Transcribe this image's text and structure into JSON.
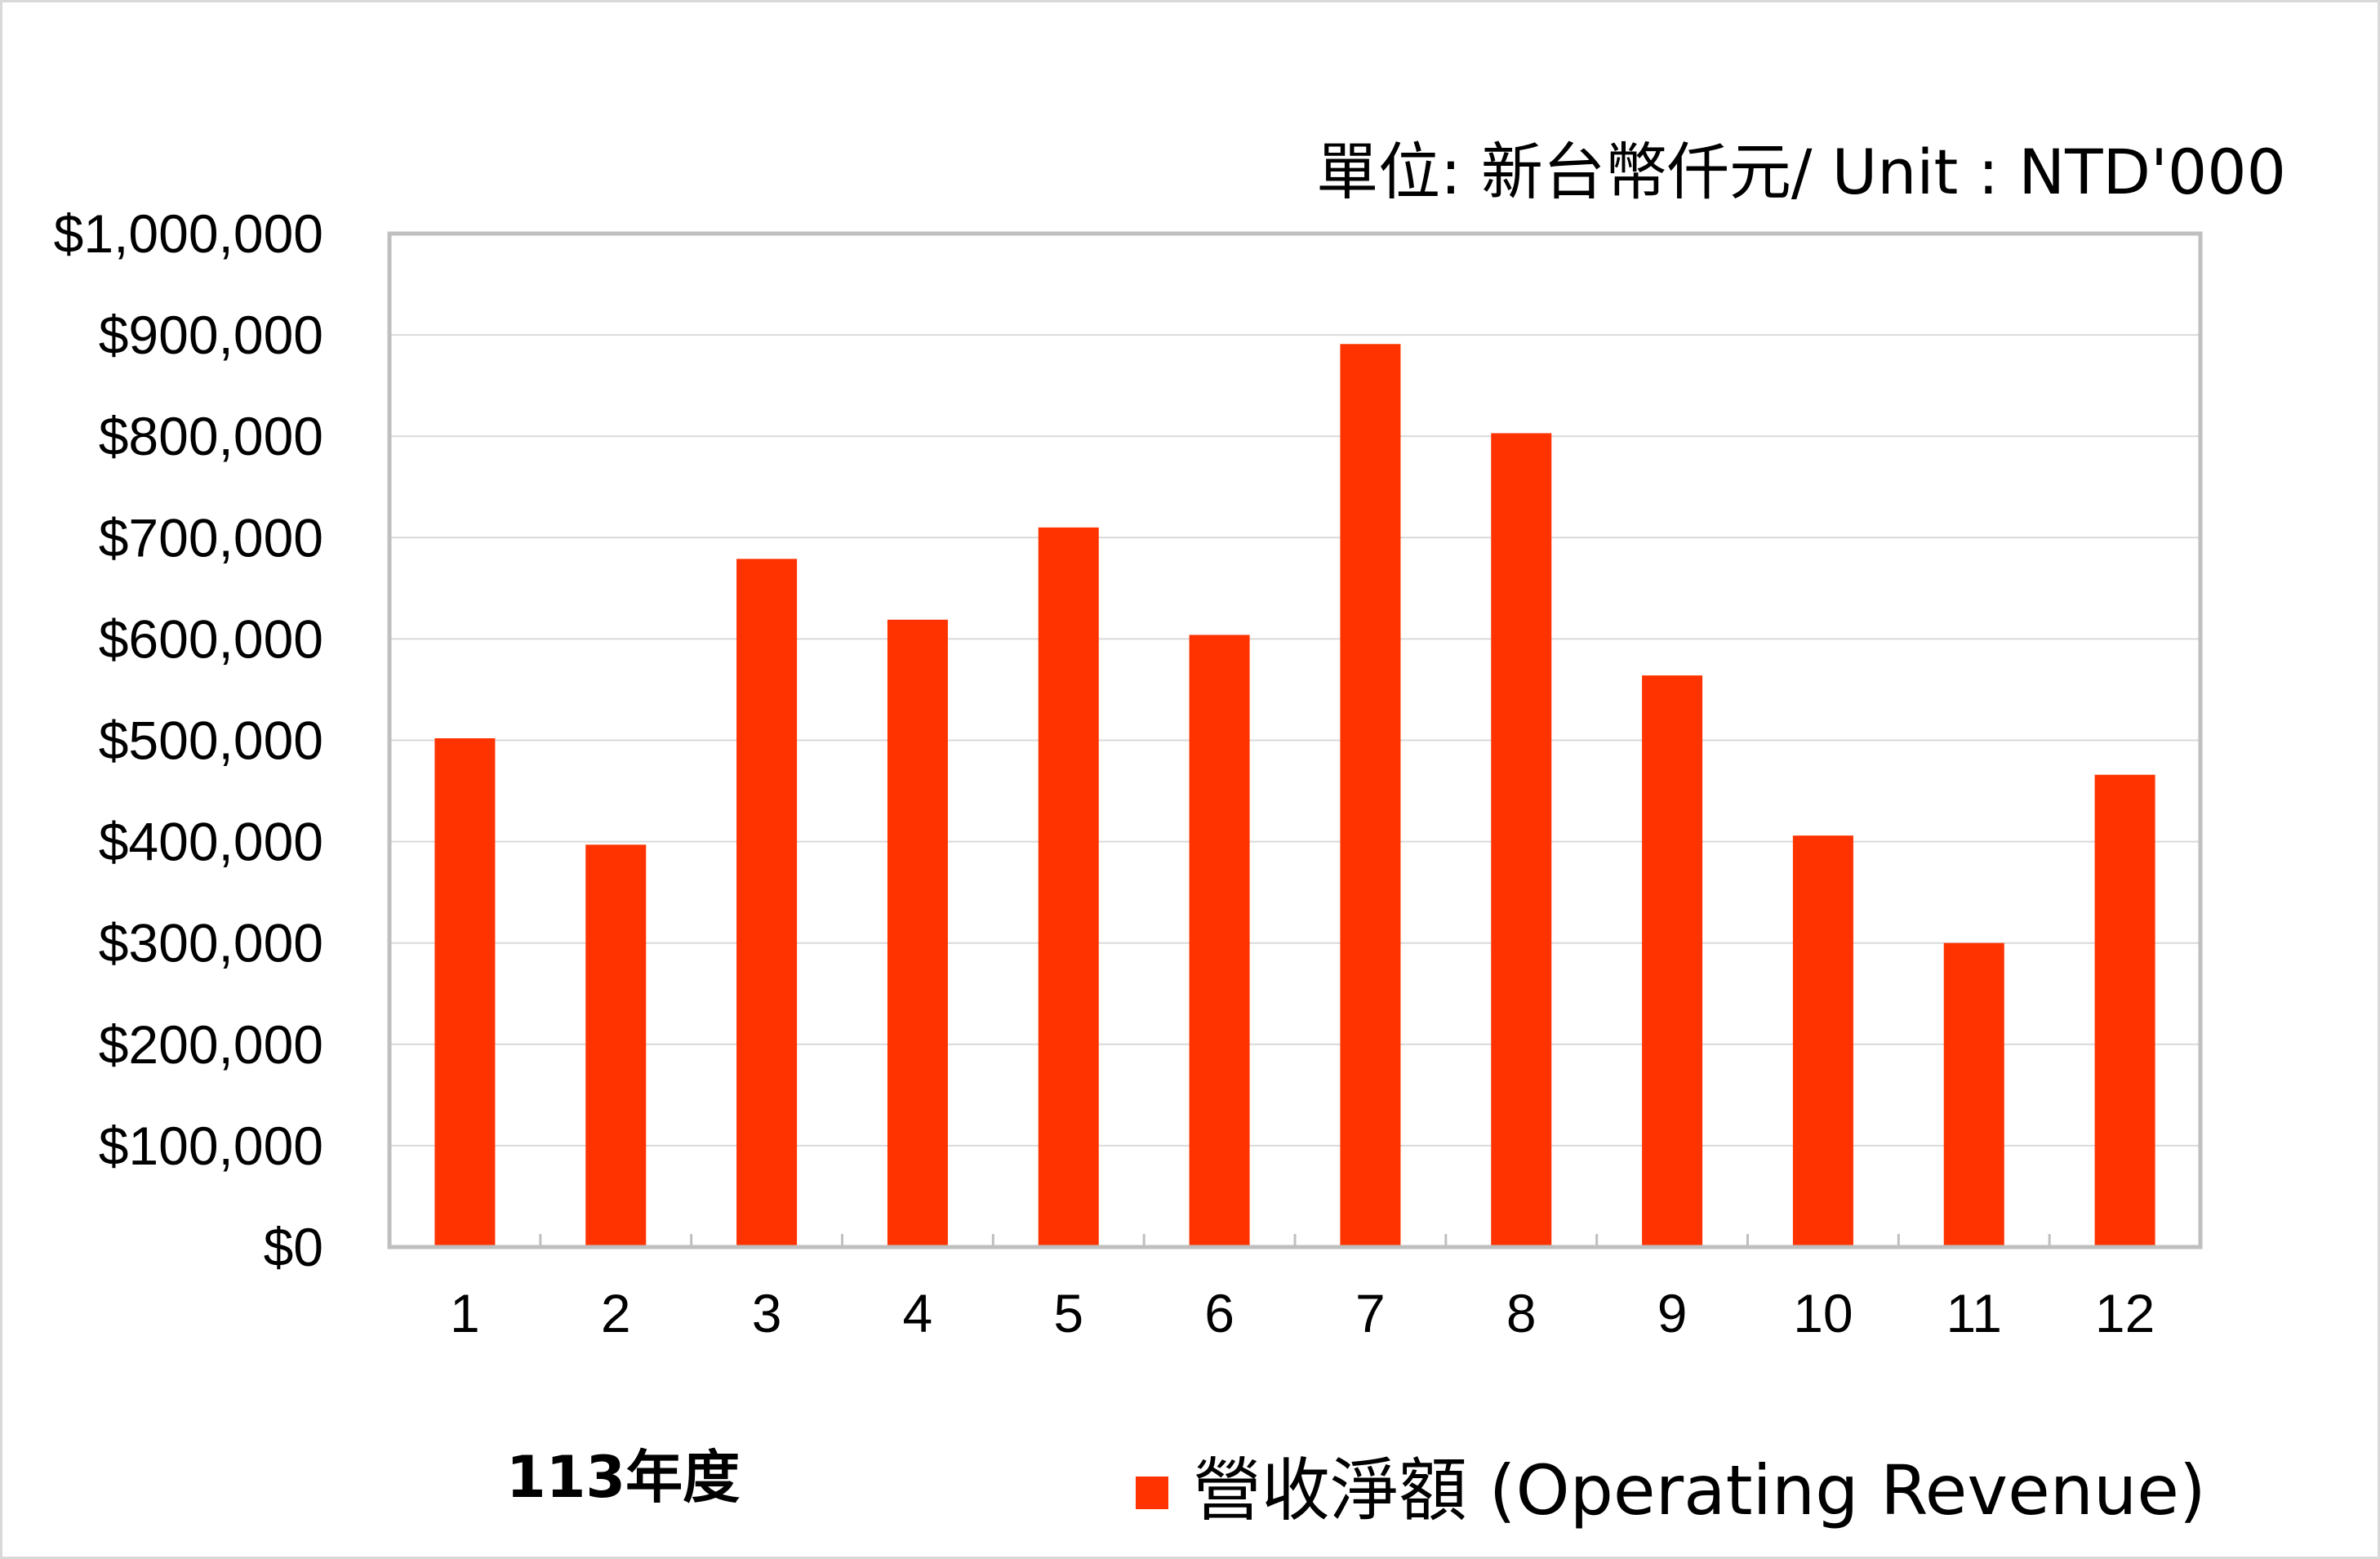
{
  "chart_data": {
    "type": "bar",
    "unit_label": "單位: 新台幣仟元/ Unit : NTD'000",
    "year_label": "113年度",
    "categories": [
      "1",
      "2",
      "3",
      "4",
      "5",
      "6",
      "7",
      "8",
      "9",
      "10",
      "11",
      "12"
    ],
    "series": [
      {
        "name": "營收淨額 (Operating Revenue)",
        "color": "#ff3300",
        "values": [
          502000,
          397000,
          679000,
          619000,
          710000,
          604000,
          891000,
          803000,
          564000,
          406000,
          300000,
          466000
        ]
      }
    ],
    "ylim": [
      0,
      1000000
    ],
    "yticks": [
      0,
      100000,
      200000,
      300000,
      400000,
      500000,
      600000,
      700000,
      800000,
      900000,
      1000000
    ],
    "ytick_labels": [
      "$0",
      "$100,000",
      "$200,000",
      "$300,000",
      "$400,000",
      "$500,000",
      "$600,000",
      "$700,000",
      "$800,000",
      "$900,000",
      "$1,000,000"
    ],
    "grid": true,
    "legend_position": "bottom-right",
    "colors": {
      "plot_border": "#bfbfbf",
      "gridline": "#d9d9d9",
      "frame_border": "#d9d9d9"
    }
  }
}
